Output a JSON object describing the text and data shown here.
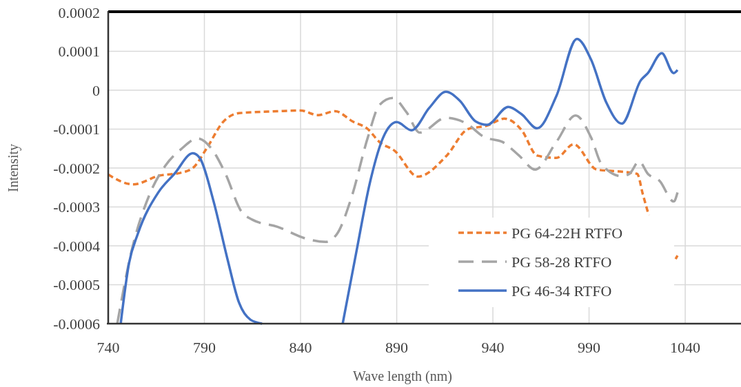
{
  "chart_data": {
    "type": "line",
    "xlabel": "Wave length (nm)",
    "ylabel": "Intensity",
    "xlim": [
      740,
      1069
    ],
    "xticks": [
      740,
      790,
      840,
      890,
      940,
      990,
      1040
    ],
    "ylim": [
      -0.0006,
      0.0002
    ],
    "yticks": [
      0.0002,
      0.0001,
      0,
      -0.0001,
      -0.0002,
      -0.0003,
      -0.0004,
      -0.0005,
      -0.0006
    ],
    "grid": true,
    "legend": "bottom right",
    "series": [
      {
        "name": "PG 64-22H RTFO",
        "color": "#ed7d31",
        "line_style": "dotted",
        "x": [
          740,
          753,
          767,
          777,
          784,
          791,
          800,
          808,
          828,
          840,
          849,
          858,
          867,
          875,
          881,
          889,
          901,
          916,
          927,
          937,
          946,
          955,
          963,
          973,
          982,
          994,
          1006,
          1015,
          1018,
          1021,
          1028,
          1035,
          1036
        ],
        "values": [
          -0.000217,
          -0.000242,
          -0.000219,
          -0.000213,
          -0.0002,
          -0.000151,
          -8e-05,
          -5.9e-05,
          -5.4e-05,
          -5.2e-05,
          -6.4e-05,
          -5.4e-05,
          -8e-05,
          -0.0001,
          -0.000133,
          -0.000156,
          -0.000222,
          -0.000168,
          -0.0001,
          -9.1e-05,
          -7.3e-05,
          -0.000103,
          -0.000168,
          -0.000174,
          -0.000139,
          -0.000204,
          -0.000209,
          -0.000215,
          -0.000268,
          -0.000321,
          null,
          -0.000434,
          -0.000425
        ]
      },
      {
        "name": "PG 58-28 RTFO",
        "color": "#a5a5a5",
        "line_style": "dashed",
        "x": [
          744.7,
          752,
          761.5,
          770,
          778,
          786.6,
          793.8,
          801,
          809,
          815,
          828,
          842.5,
          853,
          859,
          866.5,
          875,
          881,
          888,
          895,
          902,
          915.6,
          926,
          935.7,
          945,
          953.6,
          962,
          973,
          983,
          991,
          996.6,
          1007,
          1011,
          1016,
          1020.6,
          1026.7,
          1034,
          1036
        ],
        "values": [
          -0.0006,
          -0.000416,
          -0.000268,
          -0.000192,
          -0.000151,
          -0.000124,
          -0.000151,
          -0.000215,
          -0.00031,
          -0.000333,
          -0.000351,
          -0.000381,
          -0.00039,
          -0.000369,
          -0.000275,
          -0.000121,
          -3.8e-05,
          -2e-05,
          -5.6e-05,
          -0.000109,
          -7.1e-05,
          -8.5e-05,
          -0.000121,
          -0.000133,
          -0.000168,
          -0.000204,
          -0.000133,
          -6.5e-05,
          -0.000121,
          -0.000191,
          -0.000221,
          -0.000215,
          -0.000183,
          -0.000215,
          -0.000233,
          -0.000286,
          -0.000263
        ]
      },
      {
        "name": "PG 46-34 RTFO",
        "color": "#4472c4",
        "line_style": "solid",
        "x": [
          746.5,
          750.8,
          755.4,
          766,
          774.4,
          784,
          787.7,
          794.8,
          802,
          808,
          814,
          820,
          840,
          861.9,
          869,
          876,
          883,
          890,
          897.7,
          907,
          915.6,
          922.8,
          931,
          937,
          948,
          955,
          963,
          973,
          983.7,
          991,
          999,
          1007,
          1017,
          1020.6,
          1027.8,
          1034,
          1036
        ],
        "values": [
          -0.0006,
          -0.000445,
          -0.000369,
          -0.000263,
          -0.000215,
          -0.000162,
          -0.000175,
          -0.000286,
          -0.000434,
          -0.000546,
          -0.00059,
          -0.0006,
          null,
          -0.0006,
          -0.000416,
          -0.000239,
          -0.000121,
          -8.2e-05,
          -0.000103,
          -4.5e-05,
          -4e-06,
          -2.7e-05,
          -8e-05,
          -8.9e-05,
          -4.3e-05,
          -6.2e-05,
          -9.8e-05,
          -1.5e-05,
          0.000132,
          7.9e-05,
          -3.2e-05,
          -8.6e-05,
          2.6e-05,
          4.4e-05,
          9.5e-05,
          4.4e-05,
          5.2e-05
        ]
      }
    ]
  }
}
